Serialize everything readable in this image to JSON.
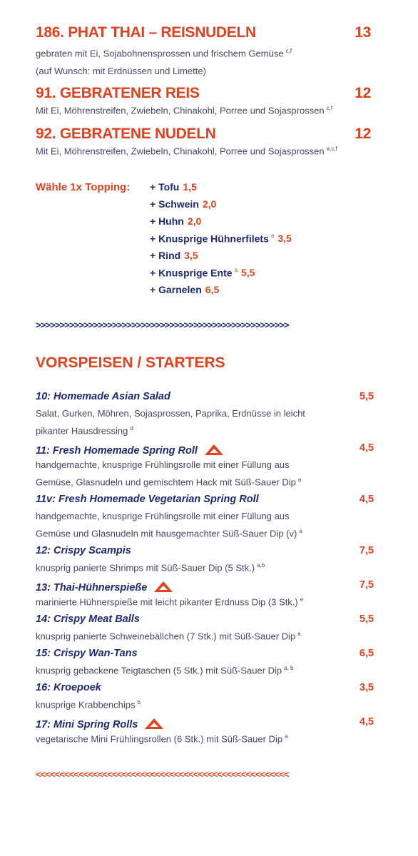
{
  "mains": [
    {
      "name": "186. PHAT THAI – REISNUDELN",
      "price": "13",
      "lines": [
        {
          "text": "gebraten mit Ei, Sojabohnensprossen und frischem Gemüse",
          "sup": "c,f"
        },
        {
          "text": "(auf Wunsch: mit Erdnüssen und Limette)"
        }
      ]
    },
    {
      "name": "91. GEBRATENER REIS",
      "price": "12",
      "lines": [
        {
          "text": "Mit Ei, Möhrenstreifen, Zwiebeln, Chinakohl, Porree und Sojasprossen",
          "sup": "c,f"
        }
      ]
    },
    {
      "name": "92. GEBRATENE NUDELN",
      "price": "12",
      "lines": [
        {
          "text": "Mit Ei, Möhrenstreifen, Zwiebeln, Chinakohl, Porree und Sojasprossen",
          "sup": "a,c,f"
        }
      ]
    }
  ],
  "topping": {
    "label": "Wähle 1x Topping:",
    "items": [
      {
        "name": "+ Tofu",
        "price": "1,5"
      },
      {
        "name": "+ Schwein",
        "price": "2,0"
      },
      {
        "name": "+ Huhn",
        "price": "2,0"
      },
      {
        "name": "+ Knusprige Hühnerfilets",
        "sup": "a",
        "price": "3,5"
      },
      {
        "name": "+ Rind",
        "price": "3,5"
      },
      {
        "name": "+ Knusprige Ente",
        "sup": "a",
        "price": "5,5"
      },
      {
        "name": "+ Garnelen",
        "price": "6,5"
      }
    ]
  },
  "divider_top": ">>>>>>>>>>>>>>>>>>>>>>>>>>>>>>>>>>>>>>>>>>>>>>>>>>>>>",
  "section_title": "VORSPEISEN / STARTERS",
  "starters": [
    {
      "name": "10: Homemade Asian Salad",
      "price": "5,5",
      "lines": [
        {
          "text": "Salat, Gurken, Möhren, Sojasprossen, Paprika, Erdnüsse in leicht"
        },
        {
          "text": "pikanter Hausdressing",
          "sup": "d"
        }
      ]
    },
    {
      "name": "11: Fresh Homemade Spring Roll",
      "icon": true,
      "price": "4,5",
      "lines": [
        {
          "text": "handgemachte, knusprige Frühlingsrolle mit einer Füllung aus"
        },
        {
          "text": "Gemüse, Glasnudeln und gemischtem Hack  mit Süß-Sauer Dip",
          "sup": "a"
        }
      ]
    },
    {
      "name": "11v: Fresh Homemade Vegetarian Spring Roll",
      "price": "4,5",
      "lines": [
        {
          "text": "handgemachte, knusprige Frühlingsrolle mit einer Füllung aus"
        },
        {
          "text": "Gemüse und Glasnudeln mit hausgemachter Süß-Sauer Dip (v)",
          "sup": "a"
        }
      ]
    },
    {
      "name": "12: Crispy Scampis",
      "price": "7,5",
      "lines": [
        {
          "text": "knusprig panierte Shrimps mit Süß-Sauer Dip (5 Stk.)",
          "sup": "a,b"
        }
      ]
    },
    {
      "name": "13: Thai-Hühnerspieße",
      "icon": true,
      "price": "7,5",
      "lines": [
        {
          "text": "marinierte Hühnerspieße mit leicht pikanter Erdnuss Dip (3 Stk.)",
          "sup": "e"
        }
      ]
    },
    {
      "name": "14: Crispy Meat Balls",
      "price": "5,5",
      "lines": [
        {
          "text": "knusprig panierte Schweinebällchen (7 Stk.) mit Süß-Sauer Dip",
          "sup": "a"
        }
      ]
    },
    {
      "name": "15: Crispy Wan-Tans",
      "price": "6,5",
      "lines": [
        {
          "text": "knusprig gebackene Teigtaschen (5 Stk.) mit Süß-Sauer Dip",
          "sup": "a, b"
        }
      ]
    },
    {
      "name": "16: Kroepoek",
      "price": "3,5",
      "lines": [
        {
          "text": "knusprige Krabbenchips",
          "sup": "b"
        }
      ]
    },
    {
      "name": "17: Mini Spring Rolls",
      "icon": true,
      "price": "4,5",
      "lines": [
        {
          "text": "vegetarische Mini Frühlingsrollen (6 Stk.) mit Süß-Sauer Dip",
          "sup": "a"
        }
      ]
    }
  ],
  "divider_bottom": "<<<<<<<<<<<<<<<<<<<<<<<<<<<<<<<<<<<<<<<<<<<<<<<<<<<<<"
}
